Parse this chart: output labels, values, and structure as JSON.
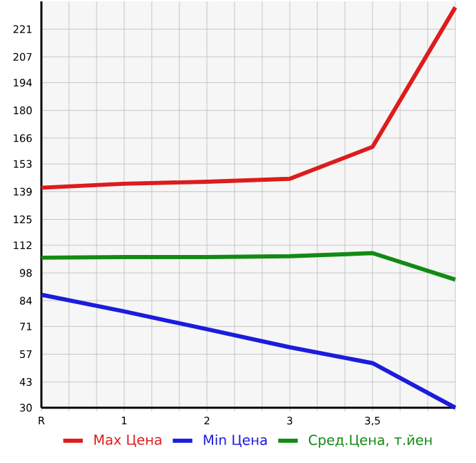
{
  "chart_data": {
    "type": "line",
    "categories": [
      "R",
      "1",
      "2",
      "3",
      "3,5",
      null
    ],
    "series": [
      {
        "name": "Max Цена",
        "color": "#dd1c1c",
        "values": [
          141,
          143,
          144,
          145.5,
          161.6,
          232
        ]
      },
      {
        "name": "Min Цена",
        "color": "#1c1cdd",
        "values": [
          87,
          78.6,
          69.6,
          60.5,
          52.5,
          30
        ]
      },
      {
        "name": "Сред.Цена, т.йен",
        "color": "#138a13",
        "values": [
          105.7,
          106,
          106,
          106.4,
          108,
          94.6
        ]
      }
    ],
    "ylim": [
      30,
      235
    ],
    "yticks": [
      30,
      43,
      57,
      71,
      84,
      98,
      112,
      125,
      139,
      153,
      166,
      180,
      194,
      207,
      221
    ],
    "grid": true,
    "legend": "bottom",
    "marker": "none",
    "line_style": "solid"
  }
}
